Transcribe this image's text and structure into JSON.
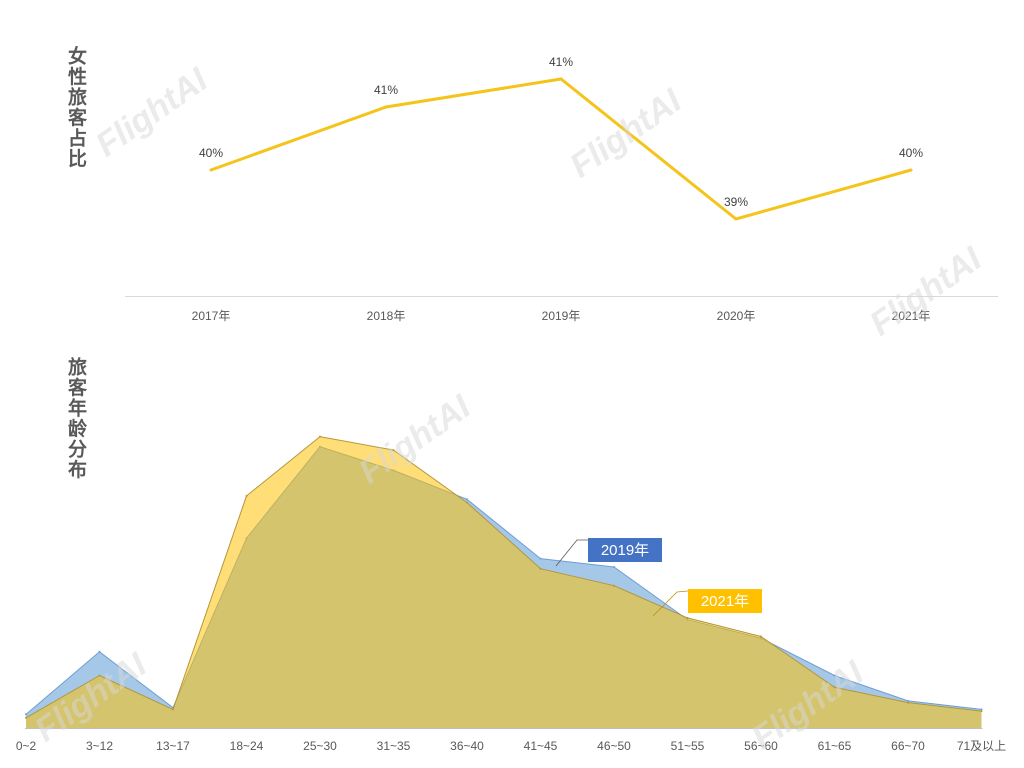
{
  "watermark": "FlightAI",
  "chart_data": [
    {
      "type": "line",
      "title": "女性旅客占比",
      "categories": [
        "2017年",
        "2018年",
        "2019年",
        "2020年",
        "2021年"
      ],
      "series": [
        {
          "values": [
            40.0,
            40.9,
            41.3,
            39.3,
            40.0
          ],
          "data_labels": [
            "40%",
            "41%",
            "41%",
            "39%",
            "40%"
          ],
          "color": "#F4C41A"
        }
      ],
      "ylim": [
        38.2,
        42.0
      ],
      "grid": false,
      "legend": "none"
    },
    {
      "type": "area",
      "title": "旅客年龄分布",
      "categories": [
        "0~2",
        "3~12",
        "13~17",
        "18~24",
        "25~30",
        "31~35",
        "36~40",
        "41~45",
        "46~50",
        "51~55",
        "56~60",
        "61~65",
        "66~70",
        "71及以上"
      ],
      "series": [
        {
          "name": "2019年",
          "values": [
            0.8,
            4.5,
            1.2,
            11.2,
            16.6,
            15.2,
            13.5,
            10.0,
            9.5,
            6.4,
            5.3,
            3.1,
            1.6,
            1.1
          ],
          "color": "#5B9BD5",
          "label_color": "#4472C4"
        },
        {
          "name": "2021年",
          "values": [
            0.6,
            3.1,
            1.1,
            13.7,
            17.2,
            16.4,
            13.3,
            9.4,
            8.4,
            6.5,
            5.4,
            2.4,
            1.5,
            1.0
          ],
          "color": "#FFC000",
          "label_color": "#FFC000"
        }
      ],
      "ylim": [
        0,
        18
      ],
      "grid": false,
      "legend": "inline"
    }
  ]
}
